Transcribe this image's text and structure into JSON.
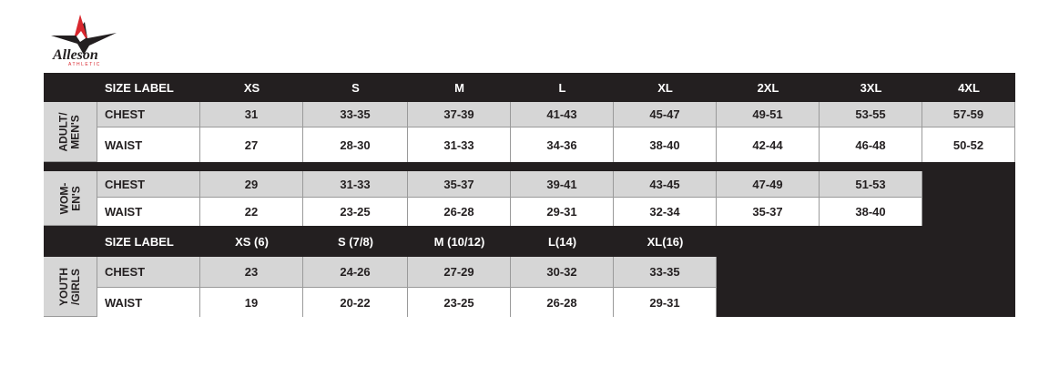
{
  "logo": {
    "name": "Alleson",
    "sub": "ATHLETIC"
  },
  "header": [
    "SIZE LABEL",
    "XS",
    "S",
    "M",
    "L",
    "XL",
    "2XL",
    "3XL",
    "4XL"
  ],
  "groups": [
    {
      "label": [
        "ADULT/",
        "MEN'S"
      ],
      "rows": [
        {
          "label": "CHEST",
          "values": [
            "31",
            "33-35",
            "37-39",
            "41-43",
            "45-47",
            "49-51",
            "53-55",
            "57-59"
          ]
        },
        {
          "label": "WAIST",
          "values": [
            "27",
            "28-30",
            "31-33",
            "34-36",
            "38-40",
            "42-44",
            "46-48",
            "50-52"
          ]
        }
      ]
    },
    {
      "label": [
        "WOM-",
        "EN'S"
      ],
      "rows": [
        {
          "label": "CHEST",
          "values": [
            "29",
            "31-33",
            "35-37",
            "39-41",
            "43-45",
            "47-49",
            "51-53"
          ]
        },
        {
          "label": "WAIST",
          "values": [
            "22",
            "23-25",
            "26-28",
            "29-31",
            "32-34",
            "35-37",
            "38-40"
          ]
        }
      ]
    },
    {
      "label": [
        "YOUTH",
        "/GIRLS"
      ],
      "rows": [
        {
          "label": "CHEST",
          "values": [
            "23",
            "24-26",
            "27-29",
            "30-32",
            "33-35"
          ]
        },
        {
          "label": "WAIST",
          "values": [
            "19",
            "20-22",
            "23-25",
            "26-28",
            "29-31"
          ]
        }
      ]
    }
  ],
  "youth_header": [
    "SIZE LABEL",
    "XS (6)",
    "S (7/8)",
    "M (10/12)",
    "L(14)",
    "XL(16)"
  ]
}
